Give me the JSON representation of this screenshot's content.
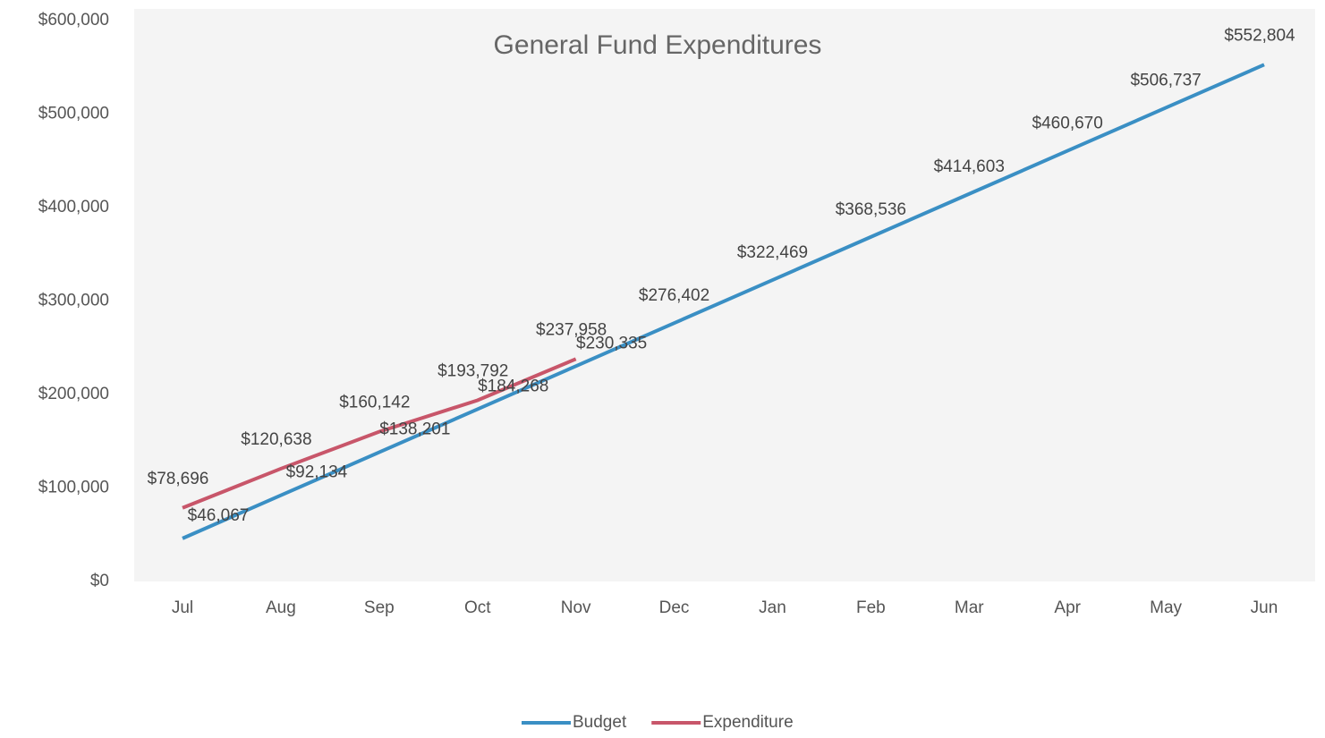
{
  "chart_data": {
    "type": "line",
    "title": "General Fund Expenditures",
    "categories": [
      "Jul",
      "Aug",
      "Sep",
      "Oct",
      "Nov",
      "Dec",
      "Jan",
      "Feb",
      "Mar",
      "Apr",
      "May",
      "Jun"
    ],
    "series": [
      {
        "name": "Budget",
        "color": "#3a8fc4",
        "values": [
          46067,
          92134,
          138201,
          184268,
          230335,
          276402,
          322469,
          368536,
          414603,
          460670,
          506737,
          552804
        ],
        "value_labels": [
          "$46,067",
          "$92,134",
          "$138,201",
          "$184,268",
          "$230,335",
          "$276,402",
          "$322,469",
          "$368,536",
          "$414,603",
          "$460,670",
          "$506,737",
          "$552,804"
        ]
      },
      {
        "name": "Expenditure",
        "color": "#c8566a",
        "values": [
          78696,
          120638,
          160142,
          193792,
          237958,
          null,
          null,
          null,
          null,
          null,
          null,
          null
        ],
        "value_labels": [
          "$78,696",
          "$120,638",
          "$160,142",
          "$193,792",
          "$237,958",
          null,
          null,
          null,
          null,
          null,
          null,
          null
        ]
      }
    ],
    "ylim": [
      0,
      600000
    ],
    "yticks": [
      {
        "value": 0,
        "label": "$0"
      },
      {
        "value": 100000,
        "label": "$100,000"
      },
      {
        "value": 200000,
        "label": "$200,000"
      },
      {
        "value": 300000,
        "label": "$300,000"
      },
      {
        "value": 400000,
        "label": "$400,000"
      },
      {
        "value": 500000,
        "label": "$500,000"
      },
      {
        "value": 600000,
        "label": "$600,000"
      }
    ],
    "grid": false,
    "legend": "bottom"
  }
}
